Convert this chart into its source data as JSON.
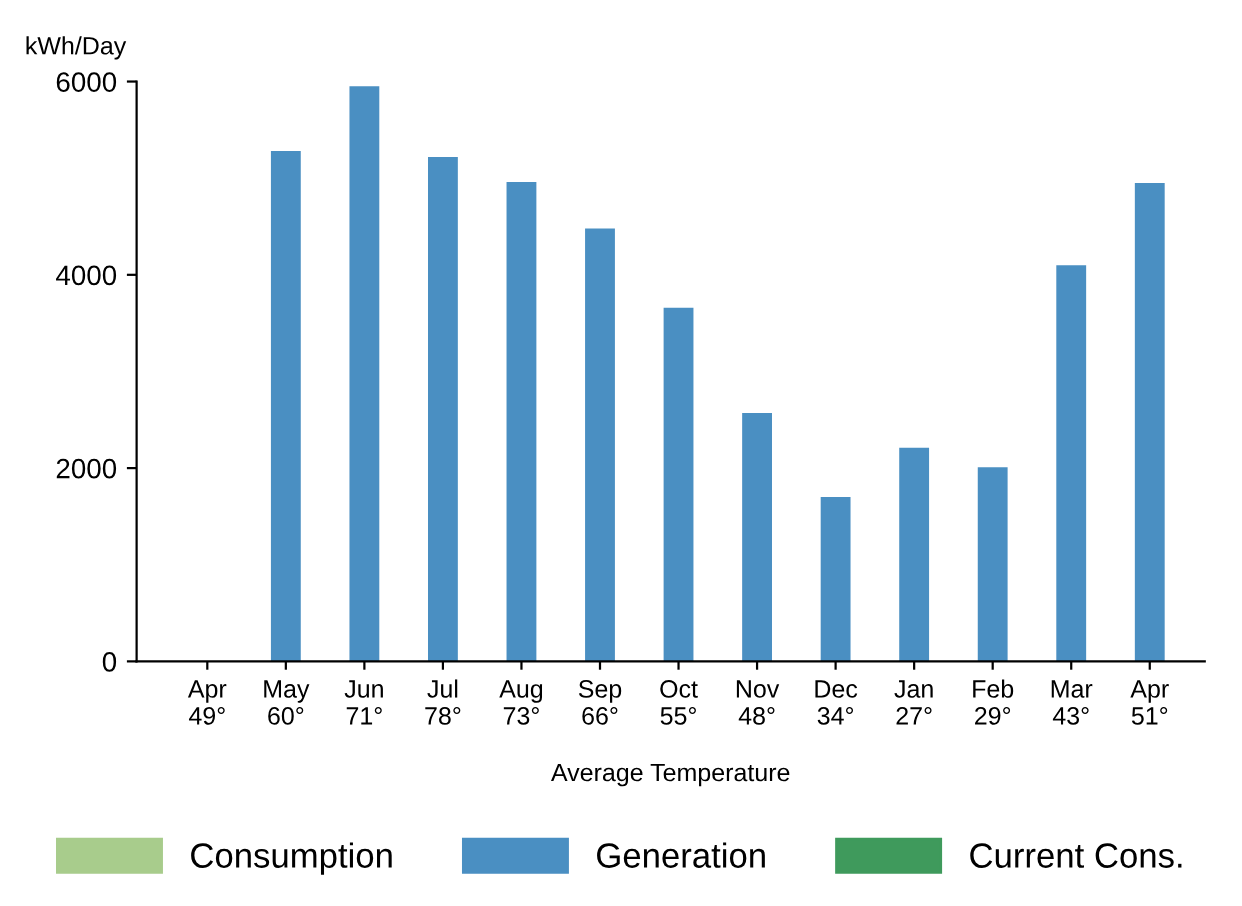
{
  "chart_data": {
    "type": "bar",
    "ylabel": "kWh/Day",
    "xlabel": "Average Temperature",
    "categories": [
      "Apr\n49°",
      "May\n60°",
      "Jun\n71°",
      "Jul\n78°",
      "Aug\n73°",
      "Sep\n66°",
      "Oct\n55°",
      "Nov\n48°",
      "Dec\n34°",
      "Jan\n27°",
      "Feb\n29°",
      "Mar\n43°",
      "Apr\n51°"
    ],
    "series": [
      {
        "name": "Consumption",
        "color": "#a8cc8c",
        "values": [
          null,
          null,
          null,
          null,
          null,
          null,
          null,
          null,
          null,
          null,
          null,
          null,
          null
        ]
      },
      {
        "name": "Generation",
        "color": "#4a8fc2",
        "values": [
          0,
          5280,
          5950,
          5220,
          4960,
          4480,
          3660,
          2570,
          1700,
          2210,
          2010,
          4100,
          4950
        ]
      },
      {
        "name": "Current Cons.",
        "color": "#3f9a5c",
        "values": [
          null,
          null,
          null,
          null,
          null,
          null,
          null,
          null,
          null,
          null,
          null,
          null,
          null
        ]
      }
    ],
    "ylim": [
      0,
      6000
    ],
    "yticks": [
      0,
      2000,
      4000,
      6000
    ],
    "grid": false,
    "legend": "bottom"
  }
}
